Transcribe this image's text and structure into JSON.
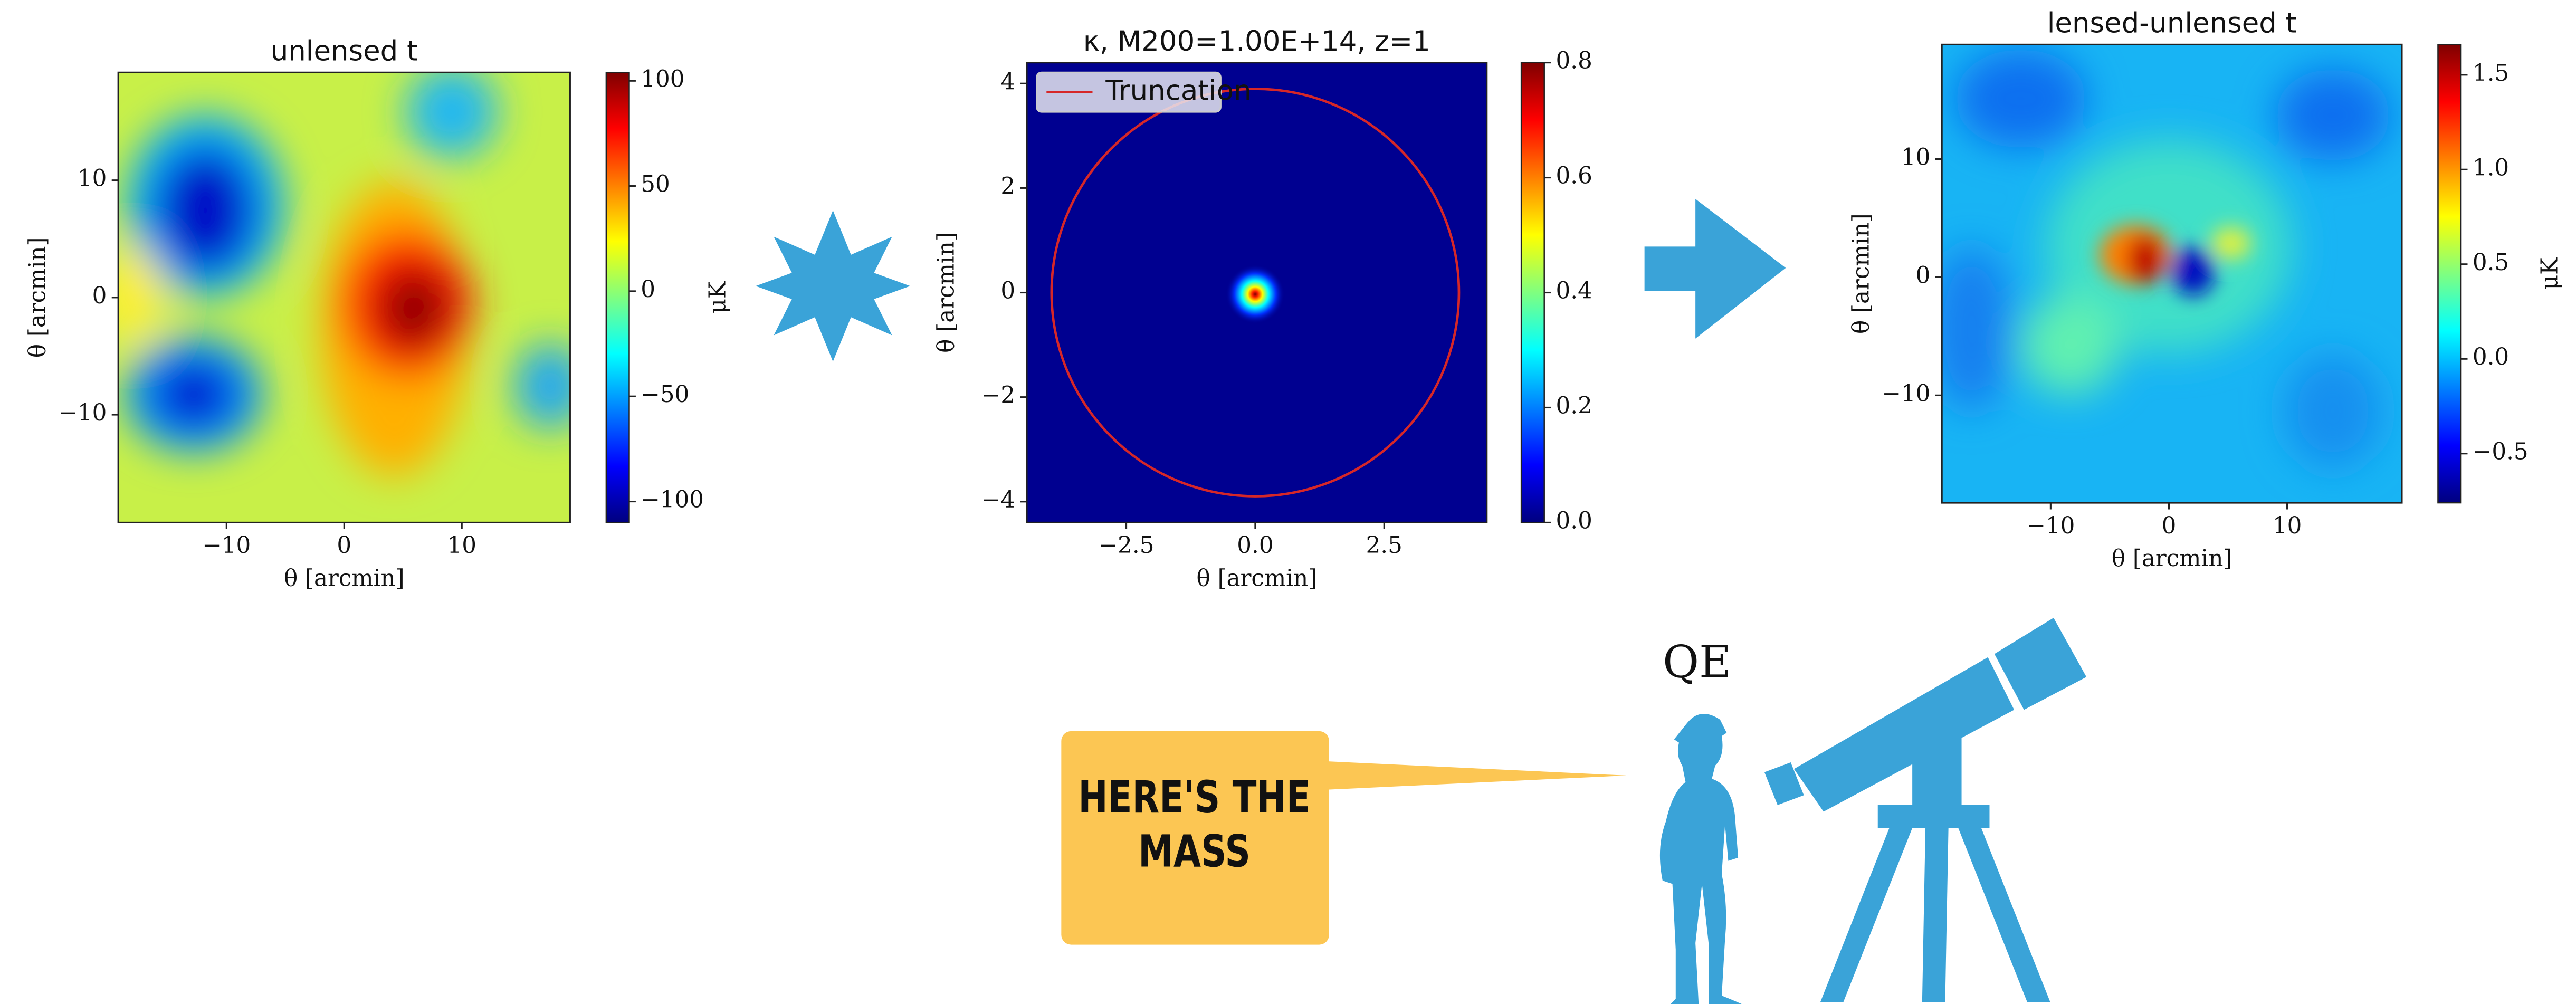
{
  "panels": [
    {
      "title": "unlensed t",
      "xlabel": "θ [arcmin]",
      "ylabel": "θ [arcmin]",
      "xlim": [
        -19.2,
        19.2
      ],
      "ylim": [
        -19.2,
        19.2
      ],
      "xticks": [
        {
          "value": -10,
          "label": "−10"
        },
        0,
        10
      ],
      "yticks": [
        {
          "value": -10,
          "label": "−10"
        },
        0,
        10
      ],
      "colorbar": {
        "label": "μK",
        "lim": [
          -110,
          104
        ],
        "ticks": [
          {
            "value": -100,
            "label": "−100"
          },
          {
            "value": -50,
            "label": "−50"
          },
          0,
          50,
          100
        ]
      }
    },
    {
      "title": "κ, M200=1.00E+14, z=1",
      "xlabel": "θ [arcmin]",
      "ylabel": "θ [arcmin]",
      "xlim": [
        -4.43,
        4.49
      ],
      "ylim": [
        -4.4,
        4.4
      ],
      "xticks": [
        {
          "value": -2.5,
          "label": "−2.5"
        },
        {
          "value": 0,
          "label": "0.0"
        },
        2.5
      ],
      "yticks": [
        {
          "value": -4,
          "label": "−4"
        },
        {
          "value": -2,
          "label": "−2"
        },
        0,
        2,
        4
      ],
      "legend": "Truncation",
      "truncation_radius": 3.95,
      "truncation_color": "#d62728",
      "colorbar": {
        "lim": [
          0,
          0.8
        ],
        "ticks": [
          {
            "value": 0,
            "label": "0.0"
          },
          0.2,
          0.4,
          0.6,
          0.8
        ]
      }
    },
    {
      "title": "lensed-unlensed t",
      "xlabel": "θ [arcmin]",
      "ylabel": "θ [arcmin]",
      "xlim": [
        -19.2,
        19.7
      ],
      "ylim": [
        -19.1,
        19.7
      ],
      "xticks": [
        {
          "value": -10,
          "label": "−10"
        },
        0,
        10
      ],
      "yticks": [
        {
          "value": -10,
          "label": "−10"
        },
        0,
        10
      ],
      "colorbar": {
        "label": "μK",
        "lim": [
          -0.76,
          1.66
        ],
        "ticks": [
          {
            "value": -0.5,
            "label": "−0.5"
          },
          {
            "value": 0,
            "label": "0.0"
          },
          0.5,
          {
            "value": 1,
            "label": "1.0"
          },
          1.5
        ]
      }
    }
  ],
  "observer_label": "QE",
  "speech": [
    "HERE'S THE",
    "MASS"
  ]
}
